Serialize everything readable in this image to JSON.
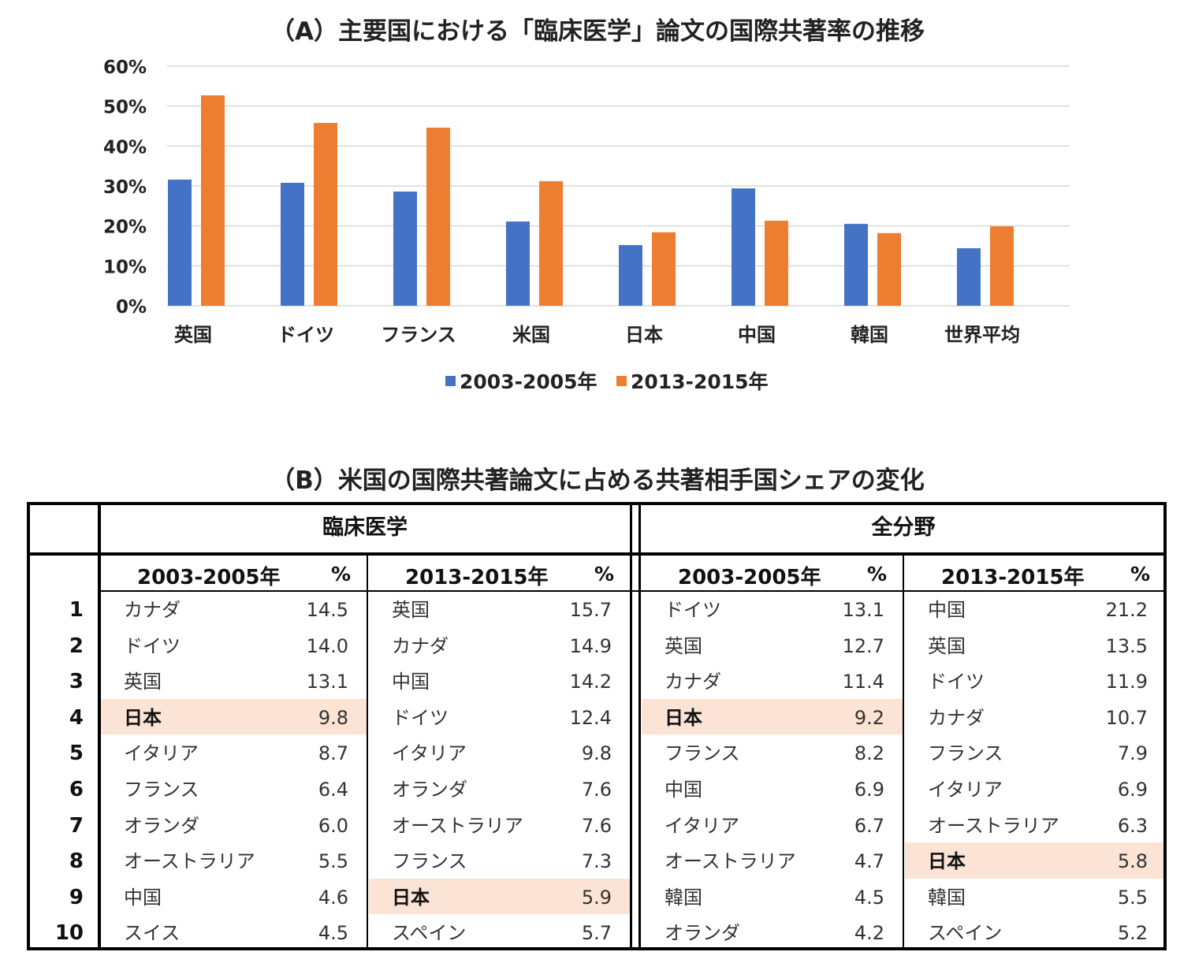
{
  "chart_data": {
    "type": "bar",
    "title": "（A）主要国における「臨床医学」論文の国際共著率の推移",
    "categories": [
      "英国",
      "ドイツ",
      "フランス",
      "米国",
      "日本",
      "中国",
      "韓国",
      "世界平均"
    ],
    "series": [
      {
        "name": "2003-2005年",
        "color": "#4472c4",
        "values": [
          31.6,
          30.8,
          28.6,
          21.1,
          15.2,
          29.4,
          20.5,
          14.4
        ]
      },
      {
        "name": "2013-2015年",
        "color": "#ed7d31",
        "values": [
          52.7,
          45.8,
          44.6,
          31.2,
          18.4,
          21.3,
          18.2,
          19.9
        ]
      }
    ],
    "ylim": [
      0,
      60
    ],
    "yticks": [
      "0%",
      "10%",
      "20%",
      "30%",
      "40%",
      "50%",
      "60%"
    ],
    "xlabel": "",
    "ylabel": "",
    "grid": true,
    "legend": "bottom"
  },
  "table": {
    "title": "（B）米国の国際共著論文に占める共著相手国シェアの変化",
    "ranks": [
      "1",
      "2",
      "3",
      "4",
      "5",
      "6",
      "7",
      "8",
      "9",
      "10"
    ],
    "highlight_color": "#fbe3d6",
    "sections": [
      {
        "title": "臨床医学",
        "periods": [
          {
            "label": "2003-2005年",
            "pct": "%",
            "highlight": 3,
            "rows": [
              [
                "カナダ",
                "14.5"
              ],
              [
                "ドイツ",
                "14.0"
              ],
              [
                "英国",
                "13.1"
              ],
              [
                "日本",
                "9.8"
              ],
              [
                "イタリア",
                "8.7"
              ],
              [
                "フランス",
                "6.4"
              ],
              [
                "オランダ",
                "6.0"
              ],
              [
                "オーストラリア",
                "5.5"
              ],
              [
                "中国",
                "4.6"
              ],
              [
                "スイス",
                "4.5"
              ]
            ]
          },
          {
            "label": "2013-2015年",
            "pct": "%",
            "highlight": 8,
            "rows": [
              [
                "英国",
                "15.7"
              ],
              [
                "カナダ",
                "14.9"
              ],
              [
                "中国",
                "14.2"
              ],
              [
                "ドイツ",
                "12.4"
              ],
              [
                "イタリア",
                "9.8"
              ],
              [
                "オランダ",
                "7.6"
              ],
              [
                "オーストラリア",
                "7.6"
              ],
              [
                "フランス",
                "7.3"
              ],
              [
                "日本",
                "5.9"
              ],
              [
                "スペイン",
                "5.7"
              ]
            ]
          }
        ]
      },
      {
        "title": "全分野",
        "periods": [
          {
            "label": "2003-2005年",
            "pct": "%",
            "highlight": 3,
            "rows": [
              [
                "ドイツ",
                "13.1"
              ],
              [
                "英国",
                "12.7"
              ],
              [
                "カナダ",
                "11.4"
              ],
              [
                "日本",
                "9.2"
              ],
              [
                "フランス",
                "8.2"
              ],
              [
                "中国",
                "6.9"
              ],
              [
                "イタリア",
                "6.7"
              ],
              [
                "オーストラリア",
                "4.7"
              ],
              [
                "韓国",
                "4.5"
              ],
              [
                "オランダ",
                "4.2"
              ]
            ]
          },
          {
            "label": "2013-2015年",
            "pct": "%",
            "highlight": 7,
            "rows": [
              [
                "中国",
                "21.2"
              ],
              [
                "英国",
                "13.5"
              ],
              [
                "ドイツ",
                "11.9"
              ],
              [
                "カナダ",
                "10.7"
              ],
              [
                "フランス",
                "7.9"
              ],
              [
                "イタリア",
                "6.9"
              ],
              [
                "オーストラリア",
                "6.3"
              ],
              [
                "日本",
                "5.8"
              ],
              [
                "韓国",
                "5.5"
              ],
              [
                "スペイン",
                "5.2"
              ]
            ]
          }
        ]
      }
    ]
  }
}
